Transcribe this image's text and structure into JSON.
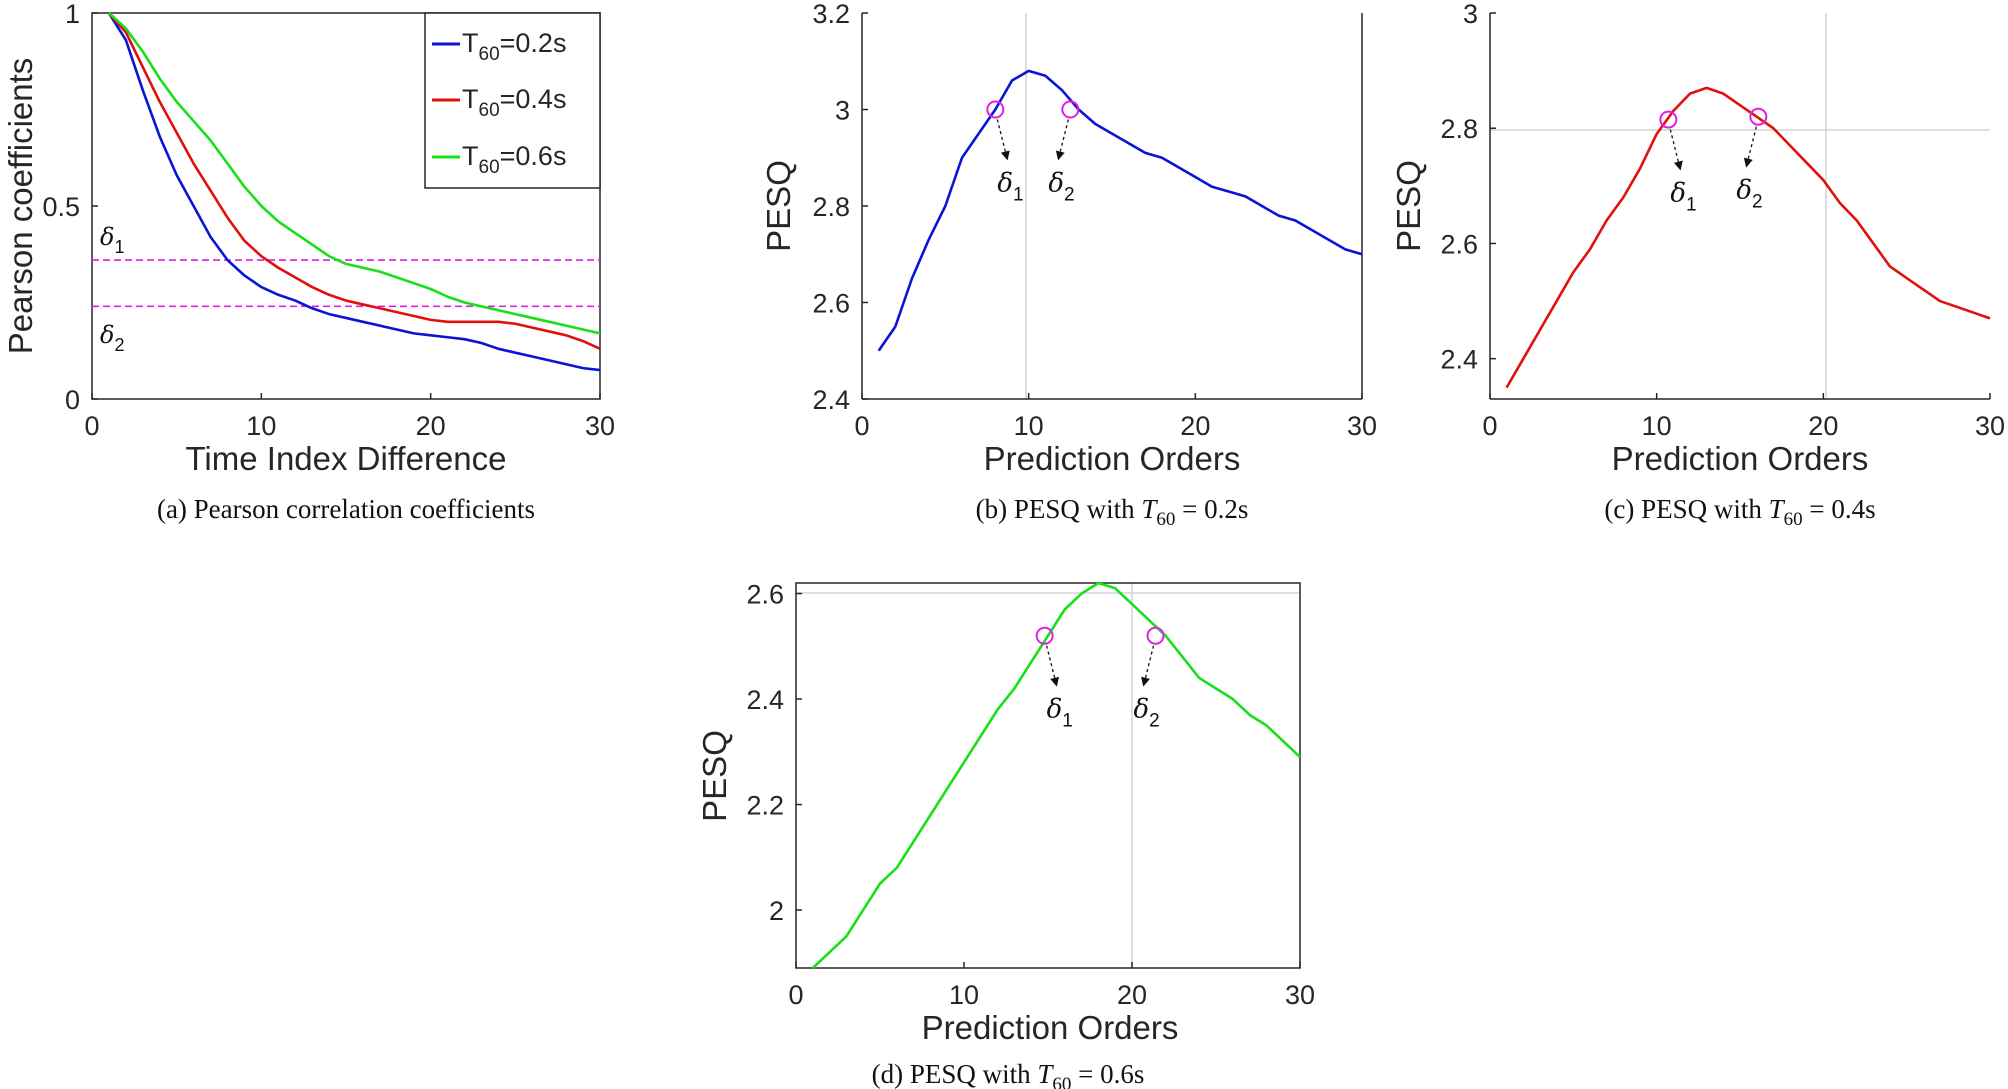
{
  "colors": {
    "blue": "#0a14d4",
    "red": "#e0100c",
    "green": "#18e018",
    "magenta": "#e020e0",
    "axis": "#262626",
    "grid": "#d4d4d4"
  },
  "chart_data": [
    {
      "id": "a",
      "type": "line",
      "caption": "(a)  Pearson correlation coefficients",
      "xlabel": "Time Index Difference",
      "ylabel": "Pearson coefficients",
      "xlim": [
        0,
        30
      ],
      "ylim": [
        0,
        1
      ],
      "xticks": [
        "0",
        "10",
        "20",
        "30"
      ],
      "yticks": [
        "0",
        "0.5",
        "1"
      ],
      "legend_position": "top-right",
      "x": [
        1,
        2,
        3,
        4,
        5,
        6,
        7,
        8,
        9,
        10,
        11,
        12,
        13,
        14,
        15,
        16,
        17,
        18,
        19,
        20,
        21,
        22,
        23,
        24,
        25,
        26,
        27,
        28,
        29,
        30
      ],
      "series": [
        {
          "name": "T60=0.2s",
          "legend_main": "T",
          "legend_sub": "60",
          "legend_rest": "=0.2s",
          "color": "#0a14d4",
          "values": [
            1.0,
            0.93,
            0.8,
            0.68,
            0.58,
            0.5,
            0.42,
            0.36,
            0.32,
            0.29,
            0.27,
            0.255,
            0.235,
            0.22,
            0.21,
            0.2,
            0.19,
            0.18,
            0.17,
            0.165,
            0.16,
            0.155,
            0.145,
            0.13,
            0.12,
            0.11,
            0.1,
            0.09,
            0.08,
            0.075
          ]
        },
        {
          "name": "T60=0.4s",
          "legend_main": "T",
          "legend_sub": "60",
          "legend_rest": "=0.4s",
          "color": "#e0100c",
          "values": [
            1.0,
            0.95,
            0.86,
            0.77,
            0.69,
            0.61,
            0.54,
            0.47,
            0.41,
            0.37,
            0.34,
            0.315,
            0.29,
            0.27,
            0.255,
            0.245,
            0.235,
            0.225,
            0.215,
            0.205,
            0.2,
            0.2,
            0.2,
            0.2,
            0.195,
            0.185,
            0.175,
            0.165,
            0.15,
            0.13
          ]
        },
        {
          "name": "T60=0.6s",
          "legend_main": "T",
          "legend_sub": "60",
          "legend_rest": "=0.6s",
          "color": "#18e018",
          "values": [
            1.0,
            0.96,
            0.9,
            0.83,
            0.77,
            0.72,
            0.67,
            0.61,
            0.55,
            0.5,
            0.46,
            0.43,
            0.4,
            0.37,
            0.35,
            0.34,
            0.33,
            0.315,
            0.3,
            0.285,
            0.265,
            0.25,
            0.24,
            0.23,
            0.22,
            0.21,
            0.2,
            0.19,
            0.18,
            0.17
          ]
        }
      ],
      "reference_lines": [
        {
          "label": "δ",
          "sub": "1",
          "y": 0.36,
          "color": "#e020e0"
        },
        {
          "label": "δ",
          "sub": "2",
          "y": 0.24,
          "color": "#e020e0"
        }
      ]
    },
    {
      "id": "b",
      "type": "line",
      "caption_prefix": "(b)  PESQ with ",
      "caption_var": "T",
      "caption_sub": "60",
      "caption_rest": " = 0.2s",
      "xlabel": "Prediction Orders",
      "ylabel": "PESQ",
      "xlim": [
        0,
        30
      ],
      "ylim": [
        2.4,
        3.2
      ],
      "xticks": [
        "0",
        "10",
        "20",
        "30"
      ],
      "yticks": [
        "2.4",
        "2.6",
        "2.8",
        "3",
        "3.2"
      ],
      "x": [
        1,
        2,
        3,
        4,
        5,
        6,
        7,
        8,
        9,
        10,
        11,
        12,
        13,
        14,
        15,
        16,
        17,
        18,
        19,
        20,
        21,
        22,
        23,
        24,
        25,
        26,
        27,
        28,
        29,
        30
      ],
      "series": [
        {
          "name": "",
          "color": "#0a14d4",
          "values": [
            2.5,
            2.55,
            2.65,
            2.73,
            2.8,
            2.9,
            2.95,
            3.0,
            3.06,
            3.08,
            3.07,
            3.04,
            3.0,
            2.97,
            2.95,
            2.93,
            2.91,
            2.9,
            2.88,
            2.86,
            2.84,
            2.83,
            2.82,
            2.8,
            2.78,
            2.77,
            2.75,
            2.73,
            2.71,
            2.7
          ]
        }
      ],
      "crosshair": {
        "x": 10,
        "y": 3.2
      },
      "markers": [
        {
          "label": "δ",
          "sub": "1",
          "x": 8,
          "y": 3.0
        },
        {
          "label": "δ",
          "sub": "2",
          "x": 12.5,
          "y": 3.0
        }
      ]
    },
    {
      "id": "c",
      "type": "line",
      "caption_prefix": "(c)  PESQ with ",
      "caption_var": "T",
      "caption_sub": "60",
      "caption_rest": " = 0.4s",
      "xlabel": "Prediction Orders",
      "ylabel": "PESQ",
      "xlim": [
        0,
        30
      ],
      "ylim": [
        2.33,
        3.0
      ],
      "xticks": [
        "0",
        "10",
        "20",
        "30"
      ],
      "yticks": [
        "2.4",
        "2.6",
        "2.8",
        "3"
      ],
      "x": [
        1,
        2,
        3,
        4,
        5,
        6,
        7,
        8,
        9,
        10,
        11,
        12,
        13,
        14,
        15,
        16,
        17,
        18,
        19,
        20,
        21,
        22,
        23,
        24,
        25,
        26,
        27,
        28,
        29,
        30
      ],
      "series": [
        {
          "name": "",
          "color": "#e0100c",
          "values": [
            2.35,
            2.4,
            2.45,
            2.5,
            2.55,
            2.59,
            2.64,
            2.68,
            2.73,
            2.79,
            2.83,
            2.86,
            2.87,
            2.86,
            2.84,
            2.82,
            2.8,
            2.77,
            2.74,
            2.71,
            2.67,
            2.64,
            2.6,
            2.56,
            2.54,
            2.52,
            2.5,
            2.49,
            2.48,
            2.47
          ]
        }
      ],
      "crosshair": {
        "x": 20,
        "y": 2.8
      },
      "markers": [
        {
          "label": "δ",
          "sub": "1",
          "x": 10.7,
          "y": 2.815
        },
        {
          "label": "δ",
          "sub": "2",
          "x": 16.1,
          "y": 2.82
        }
      ]
    },
    {
      "id": "d",
      "type": "line",
      "caption_prefix": "(d)  PESQ with ",
      "caption_var": "T",
      "caption_sub": "60",
      "caption_rest": " = 0.6s",
      "xlabel": "Prediction Orders",
      "ylabel": "PESQ",
      "xlim": [
        0,
        30
      ],
      "ylim": [
        1.89,
        2.62
      ],
      "xticks": [
        "0",
        "10",
        "20",
        "30"
      ],
      "yticks": [
        "2",
        "2.2",
        "2.4",
        "2.6"
      ],
      "x": [
        1,
        2,
        3,
        4,
        5,
        6,
        7,
        8,
        9,
        10,
        11,
        12,
        13,
        14,
        15,
        16,
        17,
        18,
        19,
        20,
        21,
        22,
        23,
        24,
        25,
        26,
        27,
        28,
        29,
        30
      ],
      "series": [
        {
          "name": "",
          "color": "#18e018",
          "values": [
            1.89,
            1.92,
            1.95,
            2.0,
            2.05,
            2.08,
            2.13,
            2.18,
            2.23,
            2.28,
            2.33,
            2.38,
            2.42,
            2.47,
            2.52,
            2.57,
            2.6,
            2.62,
            2.61,
            2.58,
            2.55,
            2.52,
            2.48,
            2.44,
            2.42,
            2.4,
            2.37,
            2.35,
            2.32,
            2.29
          ]
        }
      ],
      "crosshair": {
        "x": 20,
        "y": 2.6
      },
      "markers": [
        {
          "label": "δ",
          "sub": "1",
          "x": 14.8,
          "y": 2.52
        },
        {
          "label": "δ",
          "sub": "2",
          "x": 21.4,
          "y": 2.52
        }
      ]
    }
  ]
}
